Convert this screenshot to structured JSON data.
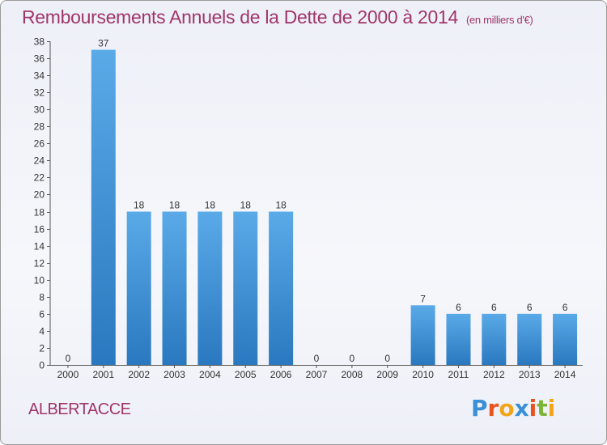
{
  "header": {
    "title": "Remboursements Annuels de la Dette de 2000 à 2014",
    "unit": "(en milliers d'€)"
  },
  "footer": {
    "commune": "ALBERTACCE",
    "logo_letters": [
      "P",
      "r",
      "o",
      "x",
      "i",
      "t",
      "i"
    ],
    "logo_colors": [
      "#3a8fd6",
      "#e8531f",
      "#f2a51a",
      "#3a8fd6",
      "#e8531f",
      "#7ab535",
      "#f2a51a"
    ]
  },
  "chart_data": {
    "type": "bar",
    "title": "Remboursements Annuels de la Dette de 2000 à 2014",
    "subtitle": "(en milliers d'€)",
    "xlabel": "",
    "ylabel": "",
    "categories": [
      "2000",
      "2001",
      "2002",
      "2003",
      "2004",
      "2005",
      "2006",
      "2007",
      "2008",
      "2009",
      "2010",
      "2011",
      "2012",
      "2013",
      "2014"
    ],
    "values": [
      0,
      37,
      18,
      18,
      18,
      18,
      18,
      0,
      0,
      0,
      7,
      6,
      6,
      6,
      6
    ],
    "ylim": [
      0,
      38
    ],
    "yticks": [
      0,
      2,
      4,
      6,
      8,
      10,
      12,
      14,
      16,
      18,
      20,
      22,
      24,
      26,
      28,
      30,
      32,
      34,
      36,
      38
    ],
    "grid": false,
    "bar_color_top": "#5aaae8",
    "bar_color_bottom": "#2a78bf"
  }
}
